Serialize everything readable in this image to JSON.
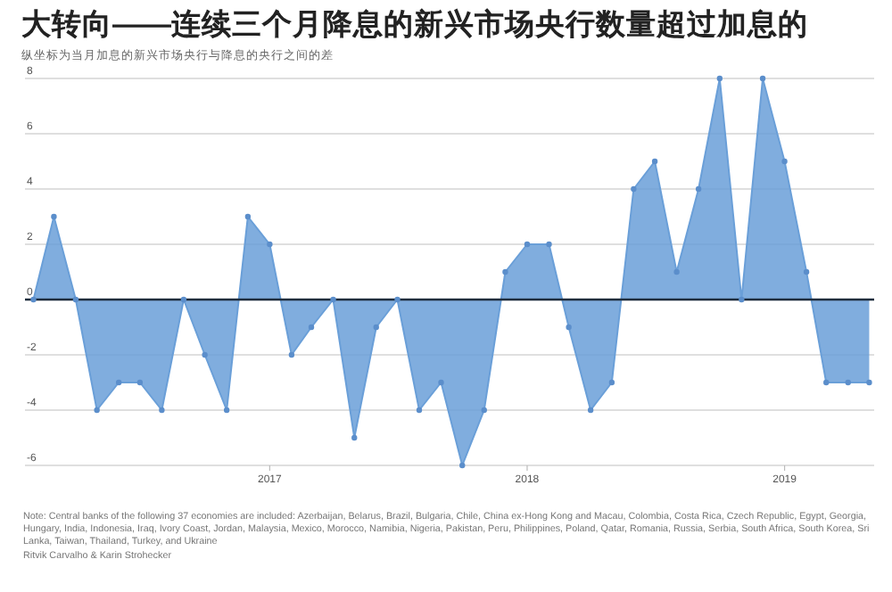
{
  "chart_data": {
    "type": "area",
    "title": "大转向——连续三个月降息的新兴市场央行数量超过加息的",
    "subtitle": "纵坐标为当月加息的新兴市场央行与降息的央行之间的差",
    "x": [
      "2016-02",
      "2016-03",
      "2016-04",
      "2016-05",
      "2016-06",
      "2016-07",
      "2016-08",
      "2016-09",
      "2016-10",
      "2016-11",
      "2016-12",
      "2017-01",
      "2017-02",
      "2017-03",
      "2017-04",
      "2017-05",
      "2017-06",
      "2017-07",
      "2017-08",
      "2017-09",
      "2017-10",
      "2017-11",
      "2017-12",
      "2018-01",
      "2018-02",
      "2018-03",
      "2018-04",
      "2018-05",
      "2018-06",
      "2018-07",
      "2018-08",
      "2018-09",
      "2018-10",
      "2018-11",
      "2018-12",
      "2019-01",
      "2019-02",
      "2019-03",
      "2019-04",
      "2019-05"
    ],
    "values": [
      0,
      3,
      0,
      -4,
      -3,
      -3,
      -4,
      0,
      -2,
      -4,
      3,
      2,
      -2,
      -1,
      0,
      -5,
      -1,
      0,
      -4,
      -3,
      -6,
      -4,
      1,
      2,
      2,
      -1,
      -4,
      -3,
      4,
      5,
      1,
      4,
      8,
      0,
      8,
      5,
      1,
      -3,
      -3,
      -3
    ],
    "color": "#6a9fd8",
    "xlim": [
      "2016-01-20",
      "2019-05-08"
    ],
    "xticks": [
      {
        "value": "2017-01",
        "label": "2017"
      },
      {
        "value": "2018-01",
        "label": "2018"
      },
      {
        "value": "2019-01",
        "label": "2019"
      }
    ],
    "ylim": [
      -6,
      8
    ],
    "yticks": [
      -6,
      -4,
      -2,
      0,
      2,
      4,
      6,
      8
    ],
    "grid": "y",
    "marker": "circle",
    "ref_lines": [
      {
        "axis": "y",
        "value": 0,
        "color": "#1f2d3d"
      }
    ],
    "annotations": [
      "Note: Central banks of the following 37 economies are included: Azerbaijan, Belarus, Brazil, Bulgaria, Chile, China ex-Hong Kong and Macau, Colombia, Costa Rica, Czech Republic, Egypt, Georgia, Hungary, India, Indonesia, Iraq, Ivory Coast, Jordan, Malaysia, Mexico, Morocco, Namibia, Nigeria, Pakistan, Peru, Philippines, Poland, Qatar, Romania, Russia, Serbia, South Africa, South Korea, Sri Lanka, Taiwan, Thailand, Turkey, and Ukraine",
      "Ritvik Carvalho & Karin Strohecker"
    ]
  }
}
